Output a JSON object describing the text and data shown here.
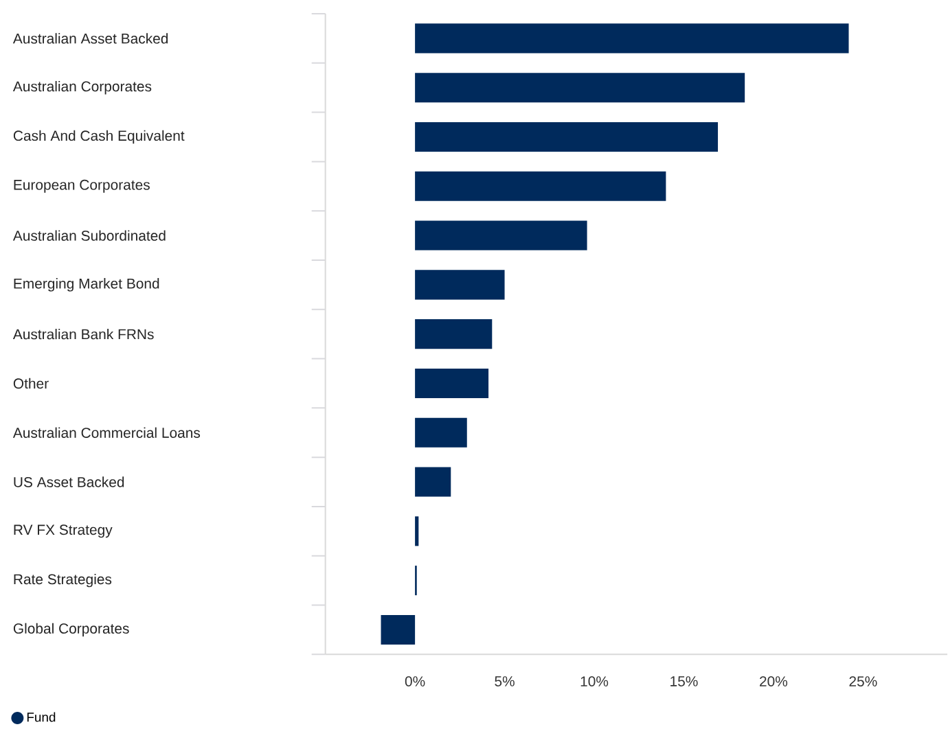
{
  "chart_data": {
    "type": "bar",
    "orientation": "horizontal",
    "categories": [
      "Australian Asset Backed",
      "Australian Corporates",
      "Cash And Cash Equivalent",
      "European Corporates",
      "Australian Subordinated",
      "Emerging Market Bond",
      "Australian Bank FRNs",
      "Other",
      "Australian Commercial Loans",
      "US Asset Backed",
      "RV FX Strategy",
      "Rate Strategies",
      "Global Corporates"
    ],
    "series": [
      {
        "name": "Fund",
        "color": "#002a5c",
        "values": [
          24.2,
          18.4,
          16.9,
          14.0,
          9.6,
          5.0,
          4.3,
          4.1,
          2.9,
          2.0,
          0.2,
          0.1,
          -1.9
        ]
      }
    ],
    "xlim": [
      -5,
      29.7
    ],
    "xticks": [
      {
        "value": 0,
        "label": "0%"
      },
      {
        "value": 5,
        "label": "5%"
      },
      {
        "value": 10,
        "label": "10%"
      },
      {
        "value": 15,
        "label": "15%"
      },
      {
        "value": 20,
        "label": "20%"
      },
      {
        "value": 25,
        "label": "25%"
      }
    ],
    "legend": "bottom left",
    "grid": false
  }
}
